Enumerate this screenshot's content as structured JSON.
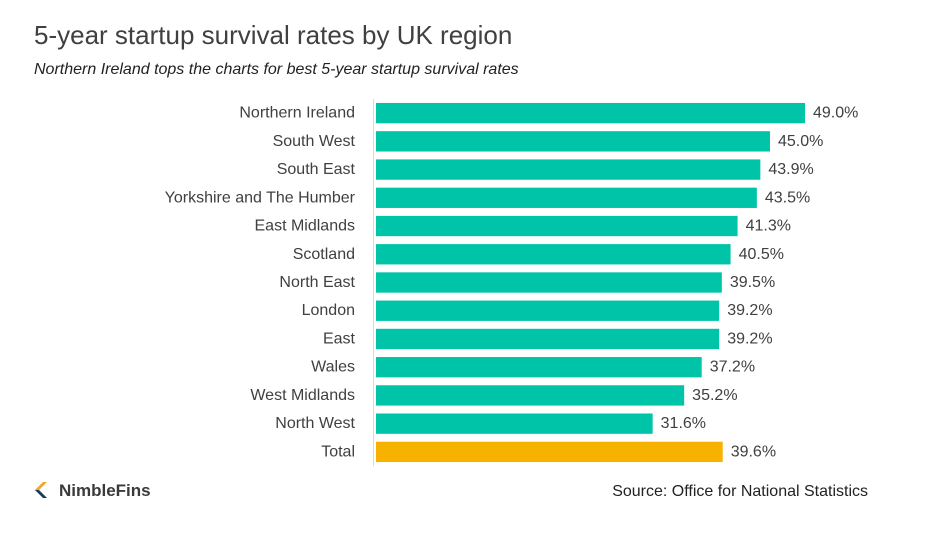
{
  "title": "5-year startup survival rates by UK region",
  "subtitle": "Northern Ireland tops the charts for best 5-year startup survival rates",
  "source": "Source: Office for National Statistics",
  "logo": {
    "text": "NimbleFins",
    "icon": "nimblefins-chevron-icon",
    "colors": [
      "#f5a623",
      "#1c3a5c"
    ]
  },
  "chart_data": {
    "type": "bar",
    "orientation": "horizontal",
    "categories": [
      "Northern Ireland",
      "South West",
      "South East",
      "Yorkshire and The Humber",
      "East Midlands",
      "Scotland",
      "North East",
      "London",
      "East",
      "Wales",
      "West Midlands",
      "North West",
      "Total"
    ],
    "values": [
      49.0,
      45.0,
      43.9,
      43.5,
      41.3,
      40.5,
      39.5,
      39.2,
      39.2,
      37.2,
      35.2,
      31.6,
      39.6
    ],
    "value_labels": [
      "49.0%",
      "45.0%",
      "43.9%",
      "43.5%",
      "41.3%",
      "40.5%",
      "39.5%",
      "39.2%",
      "39.2%",
      "37.2%",
      "35.2%",
      "31.6%",
      "39.6%"
    ],
    "colors": {
      "default": "#00c4a7",
      "highlight": "#f7b200"
    },
    "highlight_categories": [
      "Total"
    ],
    "xlim": [
      0,
      49.0
    ],
    "grid": false,
    "legend": "none"
  }
}
